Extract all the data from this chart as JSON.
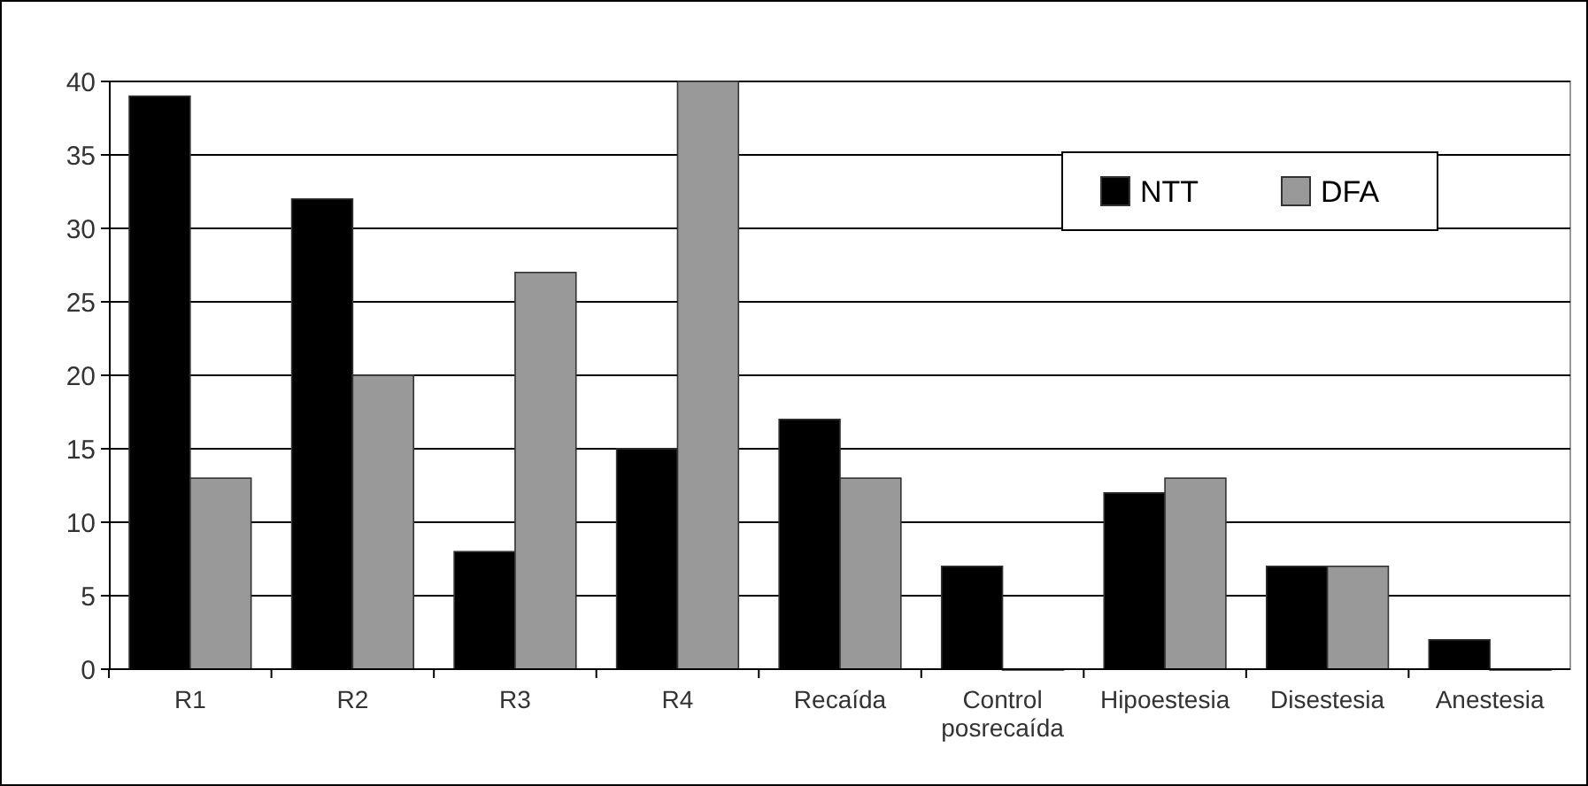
{
  "chart_data": {
    "type": "bar",
    "categories": [
      "R1",
      "R2",
      "R3",
      "R4",
      "Recaída",
      "Control posrecaída",
      "Hipoestesia",
      "Disestesia",
      "Anestesia"
    ],
    "series": [
      {
        "name": "NTT",
        "color": "#000000",
        "values": [
          39,
          32,
          8,
          15,
          17,
          7,
          12,
          7,
          2
        ]
      },
      {
        "name": "DFA",
        "color": "#999999",
        "values": [
          13,
          20,
          27,
          40,
          13,
          0,
          13,
          7,
          0
        ]
      }
    ],
    "ylim": [
      0,
      40
    ],
    "yticks": [
      0,
      5,
      10,
      15,
      20,
      25,
      30,
      35,
      40
    ],
    "grid": "y",
    "legend": "top right"
  }
}
